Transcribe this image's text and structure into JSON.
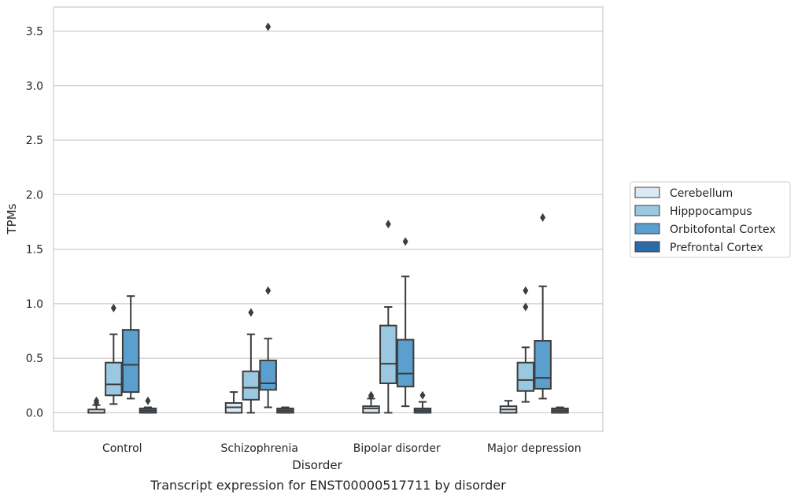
{
  "caption": "Transcript expression for ENST00000517711 by disorder",
  "chart_data": {
    "type": "box",
    "xlabel": "Disorder",
    "ylabel": "TPMs",
    "ylim": [
      -0.17,
      3.72
    ],
    "yticks": [
      "0.0",
      "0.5",
      "1.0",
      "1.5",
      "2.0",
      "2.5",
      "3.0",
      "3.5"
    ],
    "grid": "horizontal",
    "legend_position": "right",
    "categories": [
      "Control",
      "Schizophrenia",
      "Bipolar disorder",
      "Major depression"
    ],
    "series": [
      {
        "name": "Cerebellum",
        "color": "#dbe9f6",
        "boxes": [
          {
            "whisker_low": 0.0,
            "q1": 0.0,
            "median": 0.0,
            "q3": 0.03,
            "whisker_high": 0.07,
            "outliers": [
              0.09,
              0.11
            ]
          },
          {
            "whisker_low": 0.0,
            "q1": 0.0,
            "median": 0.05,
            "q3": 0.09,
            "whisker_high": 0.19,
            "outliers": []
          },
          {
            "whisker_low": 0.0,
            "q1": 0.0,
            "median": 0.04,
            "q3": 0.06,
            "whisker_high": 0.13,
            "outliers": [
              0.15,
              0.16
            ]
          },
          {
            "whisker_low": 0.0,
            "q1": 0.0,
            "median": 0.03,
            "q3": 0.06,
            "whisker_high": 0.11,
            "outliers": []
          }
        ]
      },
      {
        "name": "Hipppocampus",
        "color": "#9ac8e0",
        "boxes": [
          {
            "whisker_low": 0.08,
            "q1": 0.16,
            "median": 0.26,
            "q3": 0.46,
            "whisker_high": 0.72,
            "outliers": [
              0.96
            ]
          },
          {
            "whisker_low": 0.0,
            "q1": 0.12,
            "median": 0.23,
            "q3": 0.38,
            "whisker_high": 0.72,
            "outliers": [
              0.92
            ]
          },
          {
            "whisker_low": 0.0,
            "q1": 0.27,
            "median": 0.45,
            "q3": 0.8,
            "whisker_high": 0.97,
            "outliers": [
              1.73
            ]
          },
          {
            "whisker_low": 0.1,
            "q1": 0.2,
            "median": 0.3,
            "q3": 0.46,
            "whisker_high": 0.6,
            "outliers": [
              0.97,
              1.12
            ]
          }
        ]
      },
      {
        "name": "Orbitofontal Cortex",
        "color": "#5a9fcd",
        "boxes": [
          {
            "whisker_low": 0.13,
            "q1": 0.19,
            "median": 0.44,
            "q3": 0.76,
            "whisker_high": 1.07,
            "outliers": []
          },
          {
            "whisker_low": 0.05,
            "q1": 0.21,
            "median": 0.27,
            "q3": 0.48,
            "whisker_high": 0.68,
            "outliers": [
              1.12,
              3.54
            ]
          },
          {
            "whisker_low": 0.06,
            "q1": 0.24,
            "median": 0.36,
            "q3": 0.67,
            "whisker_high": 1.25,
            "outliers": [
              1.57
            ]
          },
          {
            "whisker_low": 0.13,
            "q1": 0.22,
            "median": 0.32,
            "q3": 0.66,
            "whisker_high": 1.16,
            "outliers": [
              1.79
            ]
          }
        ]
      },
      {
        "name": "Prefrontal Cortex",
        "color": "#2c6ba8",
        "boxes": [
          {
            "whisker_low": 0.0,
            "q1": 0.0,
            "median": 0.02,
            "q3": 0.04,
            "whisker_high": 0.05,
            "outliers": [
              0.11
            ]
          },
          {
            "whisker_low": 0.0,
            "q1": 0.0,
            "median": 0.02,
            "q3": 0.04,
            "whisker_high": 0.05,
            "outliers": []
          },
          {
            "whisker_low": 0.0,
            "q1": 0.0,
            "median": 0.02,
            "q3": 0.04,
            "whisker_high": 0.1,
            "outliers": [
              0.16
            ]
          },
          {
            "whisker_low": 0.0,
            "q1": 0.0,
            "median": 0.02,
            "q3": 0.04,
            "whisker_high": 0.05,
            "outliers": []
          }
        ]
      }
    ]
  }
}
